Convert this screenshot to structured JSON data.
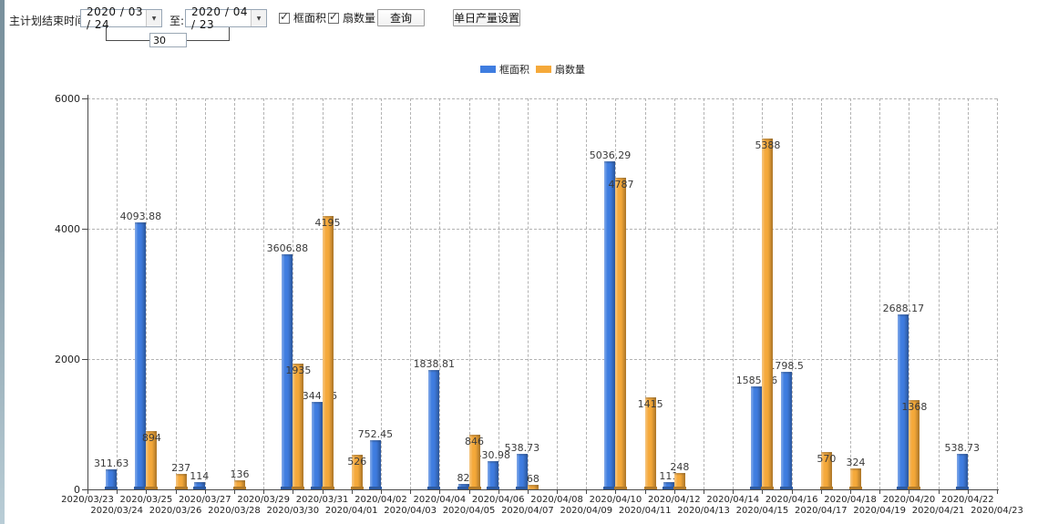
{
  "toolbar": {
    "end_time_label": "主计划结束时间:",
    "date_from": "2020 / 03 / 24",
    "to_label": "至:",
    "date_to": "2020 / 04 / 23",
    "days_value": "30",
    "checkbox_frame_area_label": "框面积",
    "checkbox_sash_count_label": "扇数量",
    "checkbox_frame_area_checked": true,
    "checkbox_sash_count_checked": true,
    "check_glyph": "✓",
    "dropdown_glyph": "▼",
    "query_button_label": "查询",
    "daily_output_button_label": "单日产量设置"
  },
  "legend": {
    "items": [
      {
        "label": "框面积",
        "color": "#3f7de0"
      },
      {
        "label": "扇数量",
        "color": "#f5a93a"
      }
    ]
  },
  "chart_data": {
    "type": "bar",
    "title": "",
    "xlabel": "",
    "ylabel": "",
    "ylim": [
      0,
      6000
    ],
    "yticks": [
      0,
      2000,
      4000,
      6000
    ],
    "grid": "dashed",
    "legend_position": "top-center",
    "categories": [
      "2020/03/23",
      "2020/03/24",
      "2020/03/25",
      "2020/03/26",
      "2020/03/27",
      "2020/03/28",
      "2020/03/29",
      "2020/03/30",
      "2020/03/31",
      "2020/04/01",
      "2020/04/02",
      "2020/04/03",
      "2020/04/04",
      "2020/04/05",
      "2020/04/06",
      "2020/04/07",
      "2020/04/08",
      "2020/04/09",
      "2020/04/10",
      "2020/04/11",
      "2020/04/12",
      "2020/04/13",
      "2020/04/14",
      "2020/04/15",
      "2020/04/16",
      "2020/04/17",
      "2020/04/18",
      "2020/04/19",
      "2020/04/20",
      "2020/04/21",
      "2020/04/22",
      "2020/04/23"
    ],
    "series": [
      {
        "name": "框面积",
        "color": "#3f7de0",
        "values": [
          0,
          311.63,
          4093.88,
          0,
          114,
          0,
          0,
          3606.88,
          1344.95,
          0,
          752.45,
          0,
          1838.81,
          82,
          430.98,
          538.73,
          0,
          0,
          5036.29,
          0,
          111,
          0,
          0,
          1585.96,
          1798.5,
          0,
          0,
          0,
          2688.17,
          0,
          538.73,
          0
        ]
      },
      {
        "name": "扇数量",
        "color": "#f5a93a",
        "values": [
          0,
          0,
          894,
          237,
          0,
          136,
          0,
          1935,
          4195,
          526,
          0,
          0,
          0,
          846,
          0,
          68,
          0,
          0,
          4787,
          1415,
          248,
          0,
          0,
          5388,
          0,
          570,
          324,
          0,
          1368,
          0,
          0,
          0
        ]
      }
    ]
  }
}
